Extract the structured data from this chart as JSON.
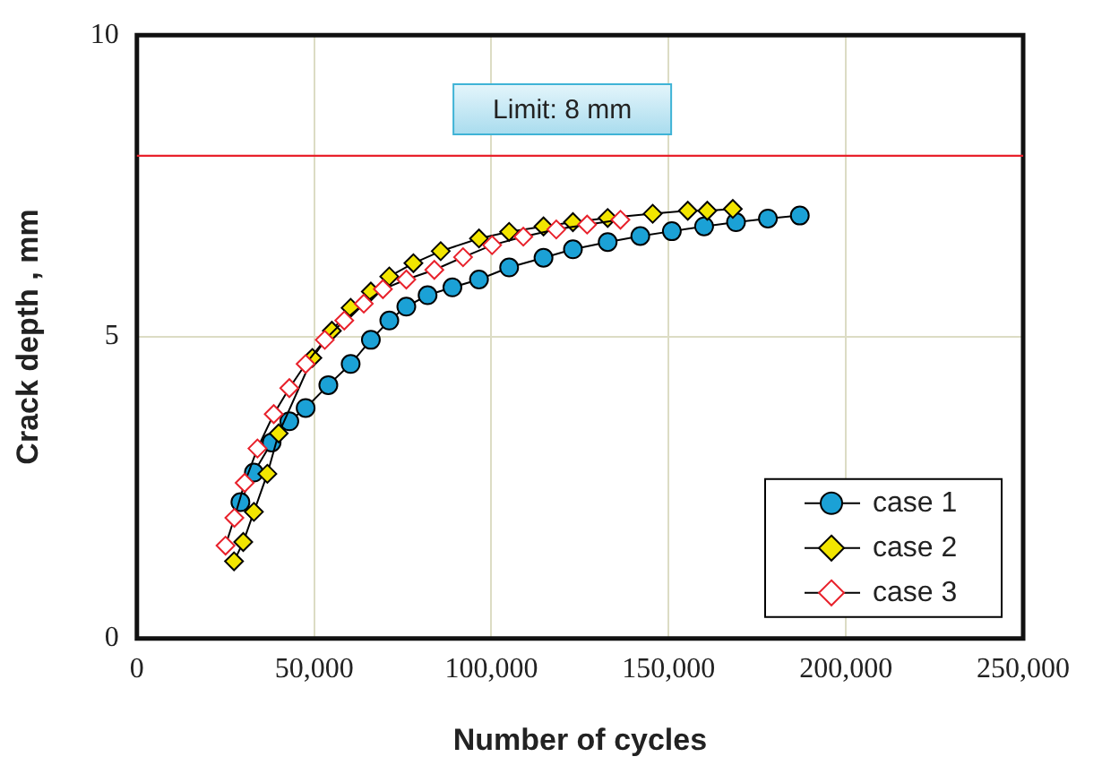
{
  "chart_data": {
    "type": "line",
    "xlabel": "Number of cycles",
    "ylabel": "Crack depth , mm",
    "xlim": [
      0,
      250000
    ],
    "xticks": [
      {
        "value": 0,
        "label": "0"
      },
      {
        "value": 50000,
        "label": "50,000"
      },
      {
        "value": 100000,
        "label": "100,000"
      },
      {
        "value": 150000,
        "label": "150,000"
      },
      {
        "value": 200000,
        "label": "200,000"
      },
      {
        "value": 250000,
        "label": "250,000"
      }
    ],
    "ylim": [
      0,
      10
    ],
    "yticks": [
      0,
      5,
      10
    ],
    "grid": true,
    "legend": "bottom right",
    "ref_lines": [
      {
        "axis": "y",
        "value": 8,
        "label": "Limit: 8 mm",
        "color": "#e8212b"
      }
    ],
    "series": [
      {
        "name": "case 1",
        "color": "#1ba1d6",
        "marker": "circle",
        "x": [
          29200,
          33000,
          38000,
          43000,
          47600,
          54000,
          60300,
          66000,
          71200,
          76000,
          82000,
          89000,
          96500,
          105000,
          114700,
          123000,
          132800,
          142000,
          150900,
          160000,
          169000,
          178000,
          187000
        ],
        "values": [
          2.26,
          2.75,
          3.25,
          3.6,
          3.82,
          4.2,
          4.55,
          4.95,
          5.27,
          5.5,
          5.69,
          5.82,
          5.95,
          6.15,
          6.31,
          6.45,
          6.57,
          6.67,
          6.75,
          6.83,
          6.9,
          6.96,
          7.01
        ]
      },
      {
        "name": "case 2",
        "color": "#f2e500",
        "marker": "diamond",
        "x": [
          27400,
          30000,
          33000,
          36800,
          40000,
          49500,
          55000,
          60300,
          66000,
          71200,
          78000,
          85700,
          96500,
          105000,
          114700,
          123000,
          132800,
          145500,
          155400,
          160900,
          168100
        ],
        "values": [
          1.28,
          1.6,
          2.1,
          2.73,
          3.4,
          4.65,
          5.1,
          5.48,
          5.75,
          6.0,
          6.22,
          6.42,
          6.63,
          6.74,
          6.83,
          6.9,
          6.97,
          7.04,
          7.09,
          7.09,
          7.12
        ]
      },
      {
        "name": "case 3",
        "color": "#e8212b",
        "marker": "diamond",
        "x": [
          25000,
          27500,
          30400,
          34000,
          38600,
          43000,
          47600,
          53000,
          58500,
          64000,
          69400,
          76000,
          83900,
          92000,
          100200,
          109000,
          118300,
          127000,
          136400
        ],
        "values": [
          1.54,
          2.0,
          2.58,
          3.15,
          3.72,
          4.15,
          4.55,
          4.95,
          5.27,
          5.55,
          5.79,
          5.95,
          6.11,
          6.32,
          6.52,
          6.66,
          6.78,
          6.86,
          6.94
        ]
      }
    ]
  }
}
